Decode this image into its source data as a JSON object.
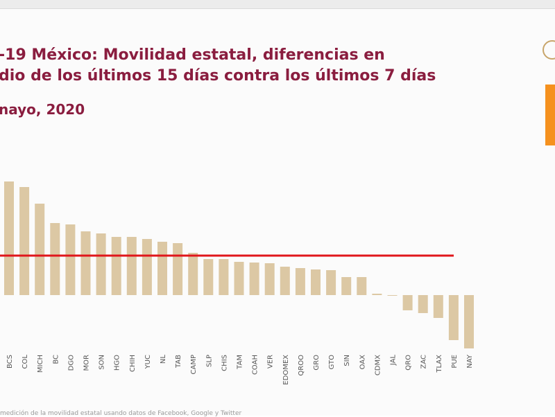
{
  "slide": {
    "title_line1": "-19 México: Movilidad estatal, diferencias en",
    "title_line2": "dio de los últimos 15 días contra los últimos 7 días",
    "subtitle": "nayo, 2020",
    "footer": "medición de la movilidad estatal usando datos de Facebook, Google y Twitter"
  },
  "colors": {
    "bars": "#dcc8a4",
    "reference_line": "#e0161b",
    "title": "#8a1d3f",
    "accent": "#f5911e"
  },
  "chart_data": {
    "type": "bar",
    "categories": [
      "BCS",
      "COL",
      "MICH",
      "BC",
      "DGO",
      "MOR",
      "SON",
      "HGO",
      "CHIH",
      "YUC",
      "NL",
      "TAB",
      "CAMP",
      "SLP",
      "CHIS",
      "TAM",
      "COAH",
      "VER",
      "EDOMEX",
      "QROO",
      "GRO",
      "GTO",
      "SIN",
      "OAX",
      "CDMX",
      "JAL",
      "QRO",
      "ZAC",
      "TLAX",
      "PUE",
      "NAY"
    ],
    "values": [
      16.4,
      15.6,
      13.2,
      10.4,
      10.2,
      9.2,
      8.9,
      8.4,
      8.4,
      8.1,
      7.7,
      7.5,
      6.1,
      5.2,
      5.2,
      4.8,
      4.7,
      4.6,
      4.1,
      3.9,
      3.7,
      3.6,
      2.6,
      2.6,
      0.2,
      -0.1,
      -2.2,
      -2.6,
      -3.3,
      -6.5,
      -7.7
    ],
    "ylim": [
      -8.5,
      17.5
    ],
    "reference_line_value": 5.7,
    "grid": false
  }
}
